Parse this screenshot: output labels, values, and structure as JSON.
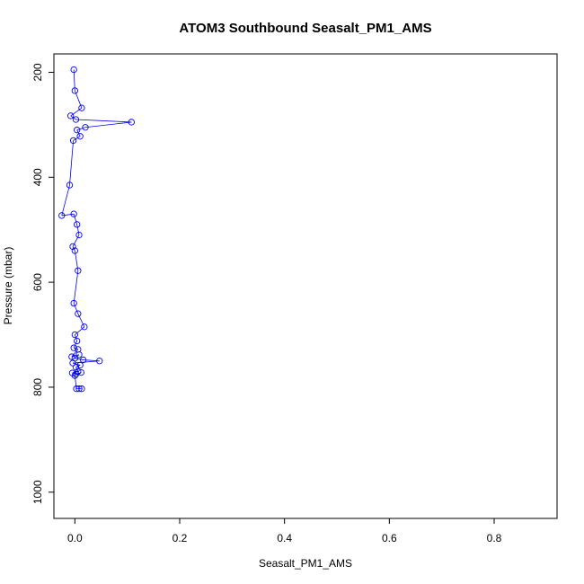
{
  "chart_data": {
    "type": "scatter",
    "title": "ATOM3 Southbound Seasalt_PM1_AMS",
    "xlabel": "Seasalt_PM1_AMS",
    "ylabel": "Pressure (mbar)",
    "xlim": [
      -0.04,
      0.92
    ],
    "ylim_inverted": [
      1050,
      165
    ],
    "x_ticks": [
      {
        "value": 0.0,
        "label": "0.0"
      },
      {
        "value": 0.2,
        "label": "0.2"
      },
      {
        "value": 0.4,
        "label": "0.4"
      },
      {
        "value": 0.6,
        "label": "0.6"
      },
      {
        "value": 0.8,
        "label": "0.8"
      }
    ],
    "y_ticks": [
      {
        "value": 200,
        "label": "200"
      },
      {
        "value": 400,
        "label": "400"
      },
      {
        "value": 600,
        "label": "600"
      },
      {
        "value": 800,
        "label": "800"
      },
      {
        "value": 1000,
        "label": "1000"
      }
    ],
    "series_color": "#0000ff",
    "grid": false,
    "series": [
      {
        "marker": "open-circle",
        "points": [
          {
            "x": -0.002,
            "y": 195
          },
          {
            "x": 0.0,
            "y": 235
          },
          {
            "x": 0.013,
            "y": 268
          },
          {
            "x": -0.008,
            "y": 283
          },
          {
            "x": 0.002,
            "y": 290
          },
          {
            "x": 0.108,
            "y": 295
          },
          {
            "x": 0.02,
            "y": 305
          },
          {
            "x": 0.004,
            "y": 310
          },
          {
            "x": 0.01,
            "y": 322
          },
          {
            "x": -0.003,
            "y": 330
          },
          {
            "x": -0.01,
            "y": 415
          },
          {
            "x": -0.025,
            "y": 473
          },
          {
            "x": -0.002,
            "y": 470
          },
          {
            "x": 0.004,
            "y": 490
          },
          {
            "x": 0.008,
            "y": 510
          },
          {
            "x": -0.004,
            "y": 532
          },
          {
            "x": 0.0,
            "y": 540
          },
          {
            "x": 0.006,
            "y": 578
          },
          {
            "x": -0.002,
            "y": 640
          },
          {
            "x": 0.006,
            "y": 660
          },
          {
            "x": 0.018,
            "y": 685
          },
          {
            "x": 0.0,
            "y": 700
          },
          {
            "x": 0.004,
            "y": 712
          },
          {
            "x": -0.002,
            "y": 725
          },
          {
            "x": 0.006,
            "y": 728
          },
          {
            "x": -0.006,
            "y": 742
          },
          {
            "x": 0.008,
            "y": 738
          },
          {
            "x": 0.0,
            "y": 745
          },
          {
            "x": 0.016,
            "y": 748
          },
          {
            "x": 0.047,
            "y": 750
          },
          {
            "x": -0.004,
            "y": 754
          },
          {
            "x": 0.01,
            "y": 758
          },
          {
            "x": 0.002,
            "y": 762
          },
          {
            "x": 0.006,
            "y": 770
          },
          {
            "x": -0.005,
            "y": 773
          },
          {
            "x": 0.002,
            "y": 775
          },
          {
            "x": 0.012,
            "y": 772
          },
          {
            "x": 0.0,
            "y": 778
          },
          {
            "x": 0.003,
            "y": 803
          },
          {
            "x": 0.008,
            "y": 803
          },
          {
            "x": 0.013,
            "y": 803
          }
        ]
      }
    ]
  }
}
